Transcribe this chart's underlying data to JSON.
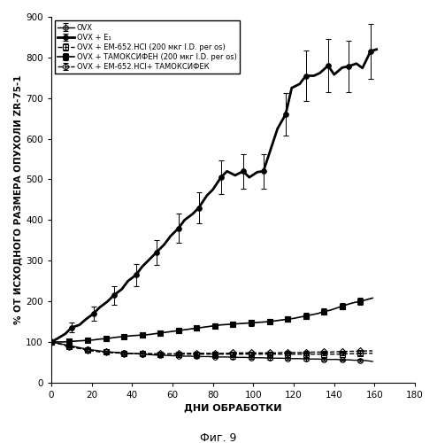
{
  "title": "",
  "xlabel": "ДНИ ОБРАБОТКИ",
  "ylabel": "% ОТ ИСХОДНОГО РАЗМЕРА ОПУХОЛИ ZR-75-1",
  "caption": "Фиг. 9",
  "xlim": [
    0,
    180
  ],
  "ylim": [
    0,
    900
  ],
  "yticks": [
    0,
    100,
    200,
    300,
    400,
    500,
    600,
    700,
    800,
    900
  ],
  "xticks": [
    0,
    20,
    40,
    60,
    80,
    100,
    120,
    140,
    160,
    180
  ],
  "series": [
    {
      "label": "OVX",
      "marker": "o",
      "fillstyle": "none",
      "linestyle": "-",
      "color": "black",
      "linewidth": 1.0,
      "x": [
        0,
        3,
        6,
        9,
        12,
        15,
        18,
        21,
        24,
        27,
        30,
        33,
        36,
        39,
        42,
        45,
        48,
        51,
        54,
        57,
        60,
        63,
        66,
        69,
        72,
        75,
        78,
        81,
        84,
        87,
        90,
        93,
        96,
        99,
        102,
        105,
        108,
        111,
        114,
        117,
        120,
        123,
        126,
        129,
        132,
        135,
        138,
        141,
        144,
        147,
        150,
        153,
        156,
        159
      ],
      "y": [
        100,
        97,
        94,
        91,
        88,
        85,
        82,
        80,
        78,
        76,
        75,
        74,
        73,
        72,
        71,
        70,
        69,
        68,
        67,
        67,
        66,
        66,
        65,
        65,
        64,
        64,
        64,
        63,
        63,
        63,
        62,
        62,
        62,
        61,
        61,
        61,
        60,
        60,
        60,
        59,
        59,
        59,
        58,
        58,
        58,
        57,
        57,
        57,
        56,
        56,
        55,
        55,
        54,
        52
      ],
      "yerr": [
        0,
        2,
        2,
        3,
        3,
        3,
        3,
        3,
        3,
        3,
        3,
        3,
        3,
        3,
        3,
        3,
        3,
        3,
        3,
        3,
        3,
        3,
        3,
        3,
        3,
        3,
        3,
        3,
        3,
        3,
        3,
        3,
        3,
        3,
        3,
        3,
        3,
        3,
        3,
        3,
        3,
        3,
        3,
        3,
        3,
        3,
        3,
        3,
        3,
        3,
        3,
        3,
        3,
        3
      ]
    },
    {
      "label": "OVX + E₁",
      "marker": "o",
      "fillstyle": "full",
      "linestyle": "-",
      "color": "black",
      "linewidth": 2.0,
      "x": [
        0,
        3,
        7,
        10,
        14,
        17,
        21,
        24,
        28,
        31,
        35,
        38,
        42,
        45,
        49,
        52,
        56,
        59,
        63,
        66,
        70,
        73,
        77,
        80,
        84,
        87,
        91,
        95,
        98,
        102,
        105,
        109,
        112,
        116,
        119,
        123,
        126,
        130,
        133,
        137,
        140,
        144,
        147,
        151,
        154,
        158,
        161
      ],
      "y": [
        100,
        108,
        120,
        135,
        142,
        155,
        170,
        185,
        200,
        215,
        230,
        250,
        265,
        285,
        305,
        320,
        340,
        360,
        380,
        400,
        415,
        430,
        460,
        475,
        505,
        520,
        510,
        520,
        505,
        518,
        520,
        580,
        625,
        660,
        725,
        735,
        755,
        755,
        762,
        780,
        758,
        775,
        778,
        785,
        774,
        815,
        820
      ],
      "yerr": [
        0,
        8,
        10,
        12,
        15,
        17,
        18,
        20,
        22,
        23,
        25,
        25,
        27,
        28,
        30,
        30,
        32,
        33,
        35,
        36,
        37,
        38,
        40,
        40,
        42,
        43,
        42,
        43,
        42,
        43,
        42,
        48,
        50,
        53,
        60,
        60,
        62,
        62,
        63,
        65,
        60,
        63,
        63,
        65,
        63,
        68,
        70
      ]
    },
    {
      "label": "OVX + EM-652.HCl (200 мкг I.D. per os)",
      "marker": "s",
      "fillstyle": "none",
      "linestyle": "--",
      "color": "black",
      "linewidth": 1.0,
      "x": [
        0,
        3,
        6,
        9,
        12,
        15,
        18,
        21,
        24,
        27,
        30,
        33,
        36,
        39,
        42,
        45,
        48,
        51,
        54,
        57,
        60,
        63,
        66,
        69,
        72,
        75,
        78,
        81,
        84,
        87,
        90,
        93,
        96,
        99,
        102,
        105,
        108,
        111,
        114,
        117,
        120,
        123,
        126,
        129,
        132,
        135,
        138,
        141,
        144,
        147,
        150,
        153,
        156,
        159
      ],
      "y": [
        100,
        97,
        93,
        89,
        86,
        83,
        80,
        78,
        76,
        75,
        74,
        73,
        72,
        72,
        71,
        71,
        71,
        70,
        70,
        70,
        70,
        70,
        70,
        70,
        70,
        70,
        70,
        70,
        70,
        70,
        70,
        70,
        70,
        70,
        70,
        70,
        70,
        70,
        70,
        70,
        70,
        70,
        70,
        70,
        70,
        70,
        70,
        70,
        70,
        71,
        71,
        71,
        72,
        72
      ],
      "yerr": [
        0,
        2,
        3,
        3,
        3,
        3,
        3,
        3,
        3,
        3,
        3,
        3,
        3,
        3,
        3,
        3,
        3,
        3,
        3,
        3,
        3,
        3,
        3,
        3,
        3,
        3,
        3,
        3,
        3,
        3,
        3,
        3,
        3,
        3,
        3,
        3,
        3,
        3,
        3,
        3,
        3,
        3,
        3,
        3,
        3,
        3,
        3,
        3,
        3,
        3,
        3,
        3,
        3,
        3
      ]
    },
    {
      "label": "OVX + ТАМОКСИФЕН (200 мкг I.D. per os)",
      "marker": "s",
      "fillstyle": "full",
      "linestyle": "-",
      "color": "black",
      "linewidth": 1.2,
      "x": [
        0,
        3,
        6,
        9,
        12,
        15,
        18,
        21,
        24,
        27,
        30,
        33,
        36,
        39,
        42,
        45,
        48,
        51,
        54,
        57,
        60,
        63,
        66,
        69,
        72,
        75,
        78,
        81,
        84,
        87,
        90,
        93,
        96,
        99,
        102,
        105,
        108,
        111,
        114,
        117,
        120,
        123,
        126,
        129,
        132,
        135,
        138,
        141,
        144,
        147,
        150,
        153,
        156,
        159
      ],
      "y": [
        100,
        100,
        100,
        101,
        102,
        103,
        104,
        105,
        107,
        108,
        110,
        112,
        113,
        115,
        116,
        117,
        118,
        120,
        122,
        124,
        126,
        128,
        130,
        132,
        134,
        136,
        138,
        140,
        142,
        143,
        144,
        145,
        146,
        147,
        148,
        149,
        150,
        152,
        154,
        156,
        158,
        161,
        164,
        167,
        170,
        175,
        178,
        183,
        188,
        193,
        197,
        200,
        204,
        208
      ],
      "yerr": [
        0,
        3,
        4,
        4,
        4,
        4,
        5,
        5,
        5,
        5,
        5,
        5,
        5,
        5,
        6,
        6,
        6,
        6,
        6,
        6,
        6,
        6,
        6,
        6,
        6,
        6,
        6,
        6,
        6,
        7,
        7,
        7,
        7,
        7,
        7,
        7,
        7,
        7,
        7,
        7,
        7,
        8,
        8,
        8,
        8,
        8,
        8,
        8,
        8,
        8,
        9,
        9,
        9,
        10
      ]
    },
    {
      "label": "OVX + EM-652.HCl+ ТАМОКСИФЕК",
      "marker": "D",
      "fillstyle": "none",
      "linestyle": "--",
      "color": "black",
      "linewidth": 1.0,
      "x": [
        0,
        3,
        6,
        9,
        12,
        15,
        18,
        21,
        24,
        27,
        30,
        33,
        36,
        39,
        42,
        45,
        48,
        51,
        54,
        57,
        60,
        63,
        66,
        69,
        72,
        75,
        78,
        81,
        84,
        87,
        90,
        93,
        96,
        99,
        102,
        105,
        108,
        111,
        114,
        117,
        120,
        123,
        126,
        129,
        132,
        135,
        138,
        141,
        144,
        147,
        150,
        153,
        156,
        159
      ],
      "y": [
        100,
        97,
        93,
        89,
        86,
        83,
        80,
        78,
        76,
        75,
        74,
        73,
        72,
        72,
        71,
        71,
        71,
        71,
        71,
        71,
        71,
        71,
        72,
        72,
        72,
        72,
        72,
        72,
        72,
        72,
        73,
        73,
        73,
        73,
        73,
        73,
        73,
        73,
        74,
        74,
        74,
        74,
        74,
        75,
        75,
        75,
        75,
        76,
        76,
        77,
        77,
        77,
        78,
        78
      ],
      "yerr": [
        0,
        2,
        3,
        3,
        3,
        3,
        3,
        3,
        3,
        3,
        3,
        3,
        3,
        3,
        3,
        3,
        3,
        3,
        3,
        3,
        3,
        3,
        3,
        3,
        3,
        3,
        3,
        3,
        3,
        3,
        3,
        3,
        3,
        3,
        3,
        3,
        3,
        3,
        3,
        3,
        3,
        3,
        3,
        3,
        3,
        3,
        3,
        3,
        3,
        3,
        3,
        3,
        3,
        3
      ]
    }
  ]
}
